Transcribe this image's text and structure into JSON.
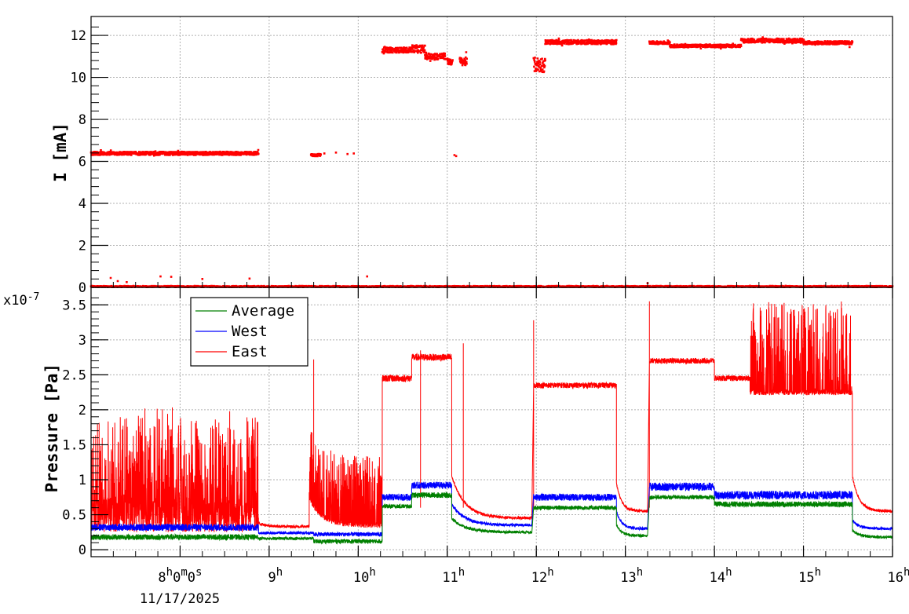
{
  "chart_data": [
    {
      "type": "scatter",
      "ylabel": "I [mA]",
      "ylim": [
        0,
        12.9
      ],
      "yticks": [
        0,
        2,
        4,
        6,
        8,
        10,
        12
      ],
      "xlim": [
        7,
        16
      ],
      "grid": true,
      "color": "#ff0000",
      "series": [
        {
          "segments": [
            {
              "x0": 7.0,
              "x1": 8.88,
              "y": 6.38,
              "noise": 0.08
            },
            {
              "x0": 9.47,
              "x1": 9.58,
              "y": 6.3,
              "noise": 0.06
            },
            {
              "x0": 10.27,
              "x1": 10.58,
              "y": 11.3,
              "noise": 0.12
            },
            {
              "x0": 10.58,
              "x1": 10.75,
              "y": 11.35,
              "noise": 0.18
            },
            {
              "x0": 10.75,
              "x1": 10.98,
              "y": 11.0,
              "noise": 0.15
            },
            {
              "x0": 11.0,
              "x1": 11.06,
              "y": 10.75,
              "noise": 0.15
            },
            {
              "x0": 11.14,
              "x1": 11.22,
              "y": 10.75,
              "noise": 0.2
            },
            {
              "x0": 11.97,
              "x1": 12.1,
              "y": 10.6,
              "noise": 0.35
            },
            {
              "x0": 12.1,
              "x1": 12.9,
              "y": 11.68,
              "noise": 0.1
            },
            {
              "x0": 13.27,
              "x1": 13.5,
              "y": 11.65,
              "noise": 0.07
            },
            {
              "x0": 13.5,
              "x1": 14.3,
              "y": 11.5,
              "noise": 0.07
            },
            {
              "x0": 14.3,
              "x1": 15.0,
              "y": 11.75,
              "noise": 0.1
            },
            {
              "x0": 15.0,
              "x1": 15.55,
              "y": 11.65,
              "noise": 0.08
            }
          ],
          "points": [
            {
              "x": 9.62,
              "y": 6.38
            },
            {
              "x": 9.75,
              "y": 6.42
            },
            {
              "x": 9.88,
              "y": 6.35
            },
            {
              "x": 9.95,
              "y": 6.38
            },
            {
              "x": 11.08,
              "y": 6.3
            },
            {
              "x": 11.1,
              "y": 6.25
            },
            {
              "x": 7.22,
              "y": 0.45
            },
            {
              "x": 7.3,
              "y": 0.3
            },
            {
              "x": 7.4,
              "y": 0.25
            },
            {
              "x": 7.78,
              "y": 0.52
            },
            {
              "x": 7.9,
              "y": 0.5
            },
            {
              "x": 8.25,
              "y": 0.4
            },
            {
              "x": 8.78,
              "y": 0.42
            },
            {
              "x": 10.1,
              "y": 0.52
            },
            {
              "x": 13.25,
              "y": 0.2
            },
            {
              "x": 14.4,
              "y": 0.08
            },
            {
              "x": 14.8,
              "y": 0.08
            },
            {
              "x": 15.3,
              "y": 0.05
            }
          ],
          "zero_gaps": [
            [
              11.06,
              11.14
            ],
            [
              12.9,
              13.27
            ],
            [
              11.0,
              11.05
            ]
          ]
        }
      ]
    },
    {
      "type": "line",
      "ylabel": "Pressure [Pa]",
      "yexponent": "x10",
      "yexponent_power": "-7",
      "ylim": [
        -0.1,
        3.75
      ],
      "yticks": [
        0,
        0.5,
        1,
        1.5,
        2,
        2.5,
        3,
        3.5
      ],
      "yticklabels": [
        "0",
        "0.5",
        "1",
        "1.5",
        "2",
        "2.5",
        "3",
        "3.5"
      ],
      "xlim": [
        7,
        16
      ],
      "xticks": [
        8,
        9,
        10,
        11,
        12,
        13,
        14,
        15,
        16
      ],
      "xticklabels": [
        {
          "main": "8",
          "sup": "h",
          "rest": "0",
          "sup2": "m",
          "rest2": "0",
          "sup3": "s"
        },
        {
          "main": "9",
          "sup": "h"
        },
        {
          "main": "10",
          "sup": "h"
        },
        {
          "main": "11",
          "sup": "h"
        },
        {
          "main": "12",
          "sup": "h"
        },
        {
          "main": "13",
          "sup": "h"
        },
        {
          "main": "14",
          "sup": "h"
        },
        {
          "main": "15",
          "sup": "h"
        },
        {
          "main": "16",
          "sup": "h"
        }
      ],
      "xdate": "11/17/2025",
      "grid": true,
      "legend": {
        "placement": "top-left"
      },
      "series": [
        {
          "name": "Average",
          "color": "#008000",
          "segments": [
            {
              "x0": 7.0,
              "x1": 8.88,
              "y": 0.18,
              "noise": 0.04,
              "spikes": 0
            },
            {
              "x0": 8.88,
              "x1": 9.5,
              "y": 0.16,
              "noise": 0.02,
              "spikes": 0
            },
            {
              "x0": 9.5,
              "x1": 10.27,
              "y": 0.12,
              "noise": 0.03,
              "spikes": 0
            },
            {
              "x0": 10.27,
              "x1": 10.6,
              "y": 0.62,
              "noise": 0.03,
              "spikes": 0
            },
            {
              "x0": 10.6,
              "x1": 11.05,
              "y": 0.78,
              "noise": 0.04,
              "spikes": 0
            },
            {
              "x0": 11.05,
              "x1": 11.95,
              "y": 0.25,
              "decay": 0.2,
              "noise": 0.02,
              "spikes": 0
            },
            {
              "x0": 11.97,
              "x1": 12.9,
              "y": 0.6,
              "noise": 0.03,
              "spikes": 0
            },
            {
              "x0": 12.9,
              "x1": 13.25,
              "y": 0.2,
              "decay": 0.15,
              "noise": 0.02,
              "spikes": 0
            },
            {
              "x0": 13.27,
              "x1": 14.0,
              "y": 0.75,
              "noise": 0.03,
              "spikes": 0
            },
            {
              "x0": 14.0,
              "x1": 15.55,
              "y": 0.65,
              "noise": 0.04,
              "spikes": 0
            },
            {
              "x0": 15.55,
              "x1": 16.0,
              "y": 0.18,
              "decay": 0.1,
              "noise": 0.02,
              "spikes": 0
            }
          ]
        },
        {
          "name": "West",
          "color": "#0000ff",
          "segments": [
            {
              "x0": 7.0,
              "x1": 8.88,
              "y": 0.32,
              "noise": 0.05,
              "spikes": 0
            },
            {
              "x0": 8.88,
              "x1": 9.5,
              "y": 0.24,
              "noise": 0.02,
              "spikes": 0
            },
            {
              "x0": 9.5,
              "x1": 10.27,
              "y": 0.22,
              "noise": 0.03,
              "spikes": 0
            },
            {
              "x0": 10.27,
              "x1": 10.6,
              "y": 0.75,
              "noise": 0.05,
              "spikes": 0
            },
            {
              "x0": 10.6,
              "x1": 11.05,
              "y": 0.92,
              "noise": 0.05,
              "spikes": 0
            },
            {
              "x0": 11.05,
              "x1": 11.95,
              "y": 0.35,
              "decay": 0.3,
              "noise": 0.02,
              "spikes": 0
            },
            {
              "x0": 11.97,
              "x1": 12.9,
              "y": 0.75,
              "noise": 0.05,
              "spikes": 0
            },
            {
              "x0": 12.9,
              "x1": 13.25,
              "y": 0.3,
              "decay": 0.25,
              "noise": 0.02,
              "spikes": 0
            },
            {
              "x0": 13.27,
              "x1": 14.0,
              "y": 0.9,
              "noise": 0.06,
              "spikes": 0
            },
            {
              "x0": 14.0,
              "x1": 15.55,
              "y": 0.78,
              "noise": 0.06,
              "spikes": 0
            },
            {
              "x0": 15.55,
              "x1": 16.0,
              "y": 0.3,
              "decay": 0.12,
              "noise": 0.02,
              "spikes": 0
            }
          ]
        },
        {
          "name": "East",
          "color": "#ff0000",
          "segments": [
            {
              "x0": 7.0,
              "x1": 8.88,
              "y": 0.5,
              "noise": 0.25,
              "spikes": 1.3
            },
            {
              "x0": 8.88,
              "x1": 9.45,
              "y": 0.33,
              "decay": 0.05,
              "noise": 0.02,
              "spikes": 0
            },
            {
              "x0": 9.45,
              "x1": 10.27,
              "y": 0.35,
              "decay": 0.4,
              "noise": 0.04,
              "spikes": 1.0
            },
            {
              "x0": 10.27,
              "x1": 10.6,
              "y": 2.45,
              "noise": 0.05,
              "spikes": 0
            },
            {
              "x0": 10.6,
              "x1": 11.05,
              "y": 2.75,
              "noise": 0.05,
              "spikes": 0
            },
            {
              "x0": 11.05,
              "x1": 11.95,
              "y": 0.45,
              "decay": 0.6,
              "noise": 0.02,
              "spikes": 0
            },
            {
              "x0": 11.97,
              "x1": 12.9,
              "y": 2.35,
              "noise": 0.04,
              "spikes": 0
            },
            {
              "x0": 12.9,
              "x1": 13.25,
              "y": 0.55,
              "decay": 0.4,
              "noise": 0.02,
              "spikes": 0
            },
            {
              "x0": 13.27,
              "x1": 14.0,
              "y": 2.7,
              "noise": 0.04,
              "spikes": 0
            },
            {
              "x0": 14.0,
              "x1": 14.4,
              "y": 2.45,
              "noise": 0.04,
              "spikes": 0
            },
            {
              "x0": 14.4,
              "x1": 15.55,
              "y": 2.25,
              "noise": 0.04,
              "spikes": 1.3
            },
            {
              "x0": 15.55,
              "x1": 16.0,
              "y": 0.55,
              "decay": 0.5,
              "noise": 0.02,
              "spikes": 0
            }
          ],
          "peaks": [
            {
              "x": 9.5,
              "y": 2.72
            },
            {
              "x": 11.18,
              "y": 2.95
            },
            {
              "x": 11.97,
              "y": 3.28
            },
            {
              "x": 13.27,
              "y": 3.55
            },
            {
              "x": 10.7,
              "y": 2.85
            }
          ]
        }
      ]
    }
  ]
}
